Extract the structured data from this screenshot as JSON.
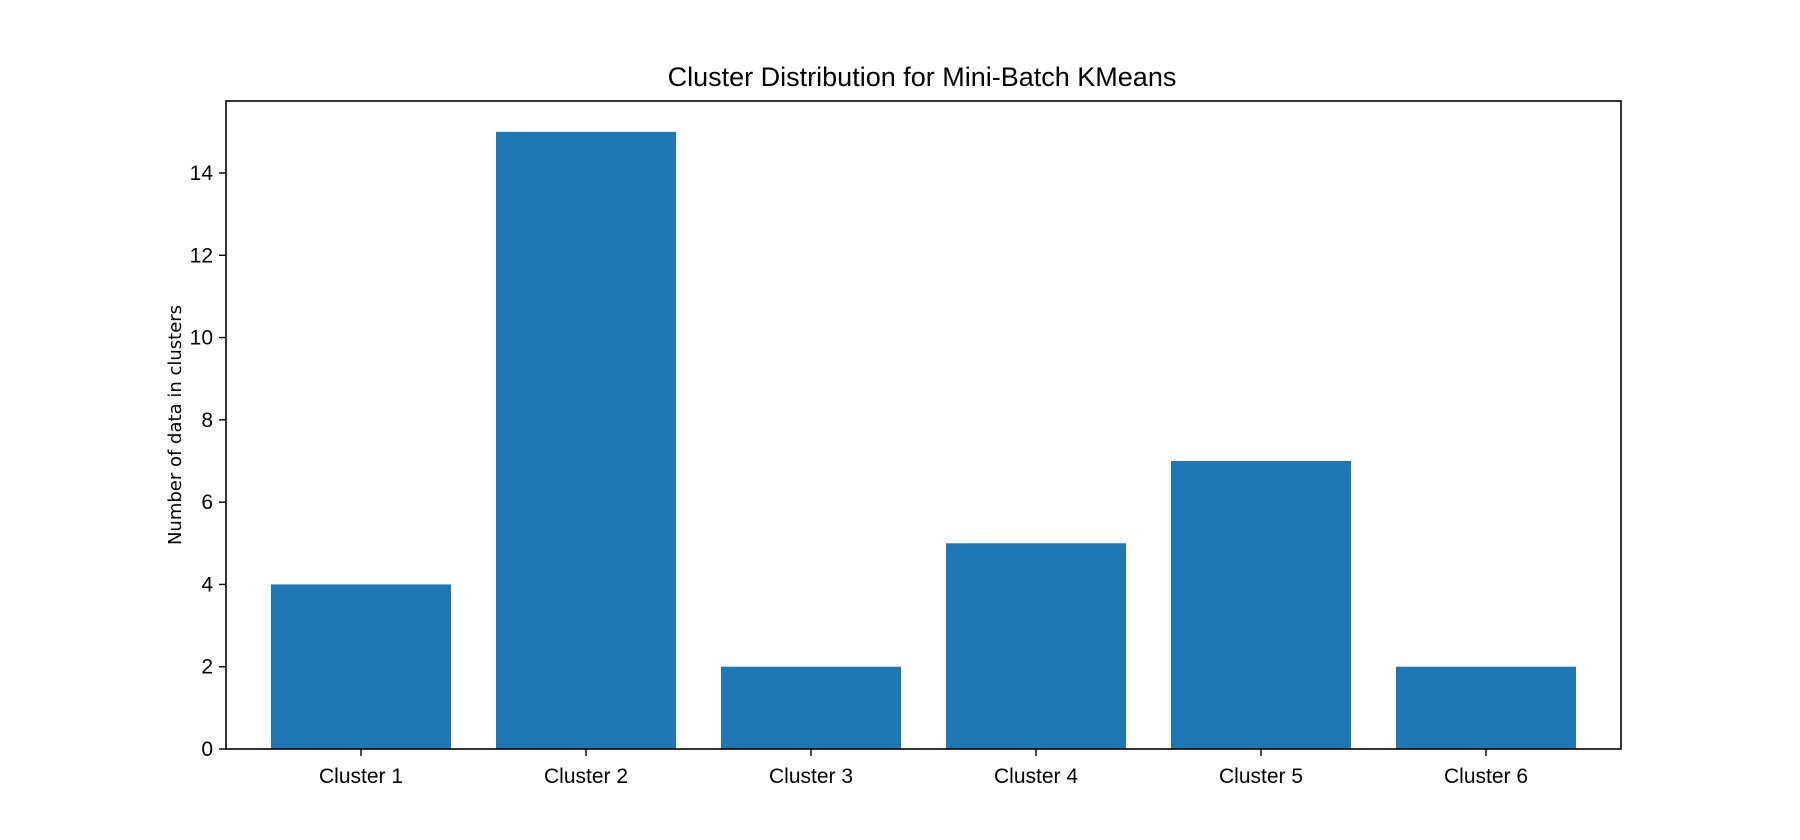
{
  "chart_data": {
    "type": "bar",
    "title": "Cluster Distribution for Mini-Batch KMeans",
    "xlabel": "",
    "ylabel": "Number of data in clusters",
    "categories": [
      "Cluster 1",
      "Cluster 2",
      "Cluster 3",
      "Cluster 4",
      "Cluster 5",
      "Cluster 6"
    ],
    "values": [
      4,
      15,
      2,
      5,
      7,
      2
    ],
    "ylim": [
      0,
      15.75
    ],
    "yticks": [
      "0",
      "2",
      "4",
      "6",
      "8",
      "10",
      "12",
      "14"
    ],
    "grid": false,
    "legend": "none",
    "bar_color": "#1f77b4"
  }
}
